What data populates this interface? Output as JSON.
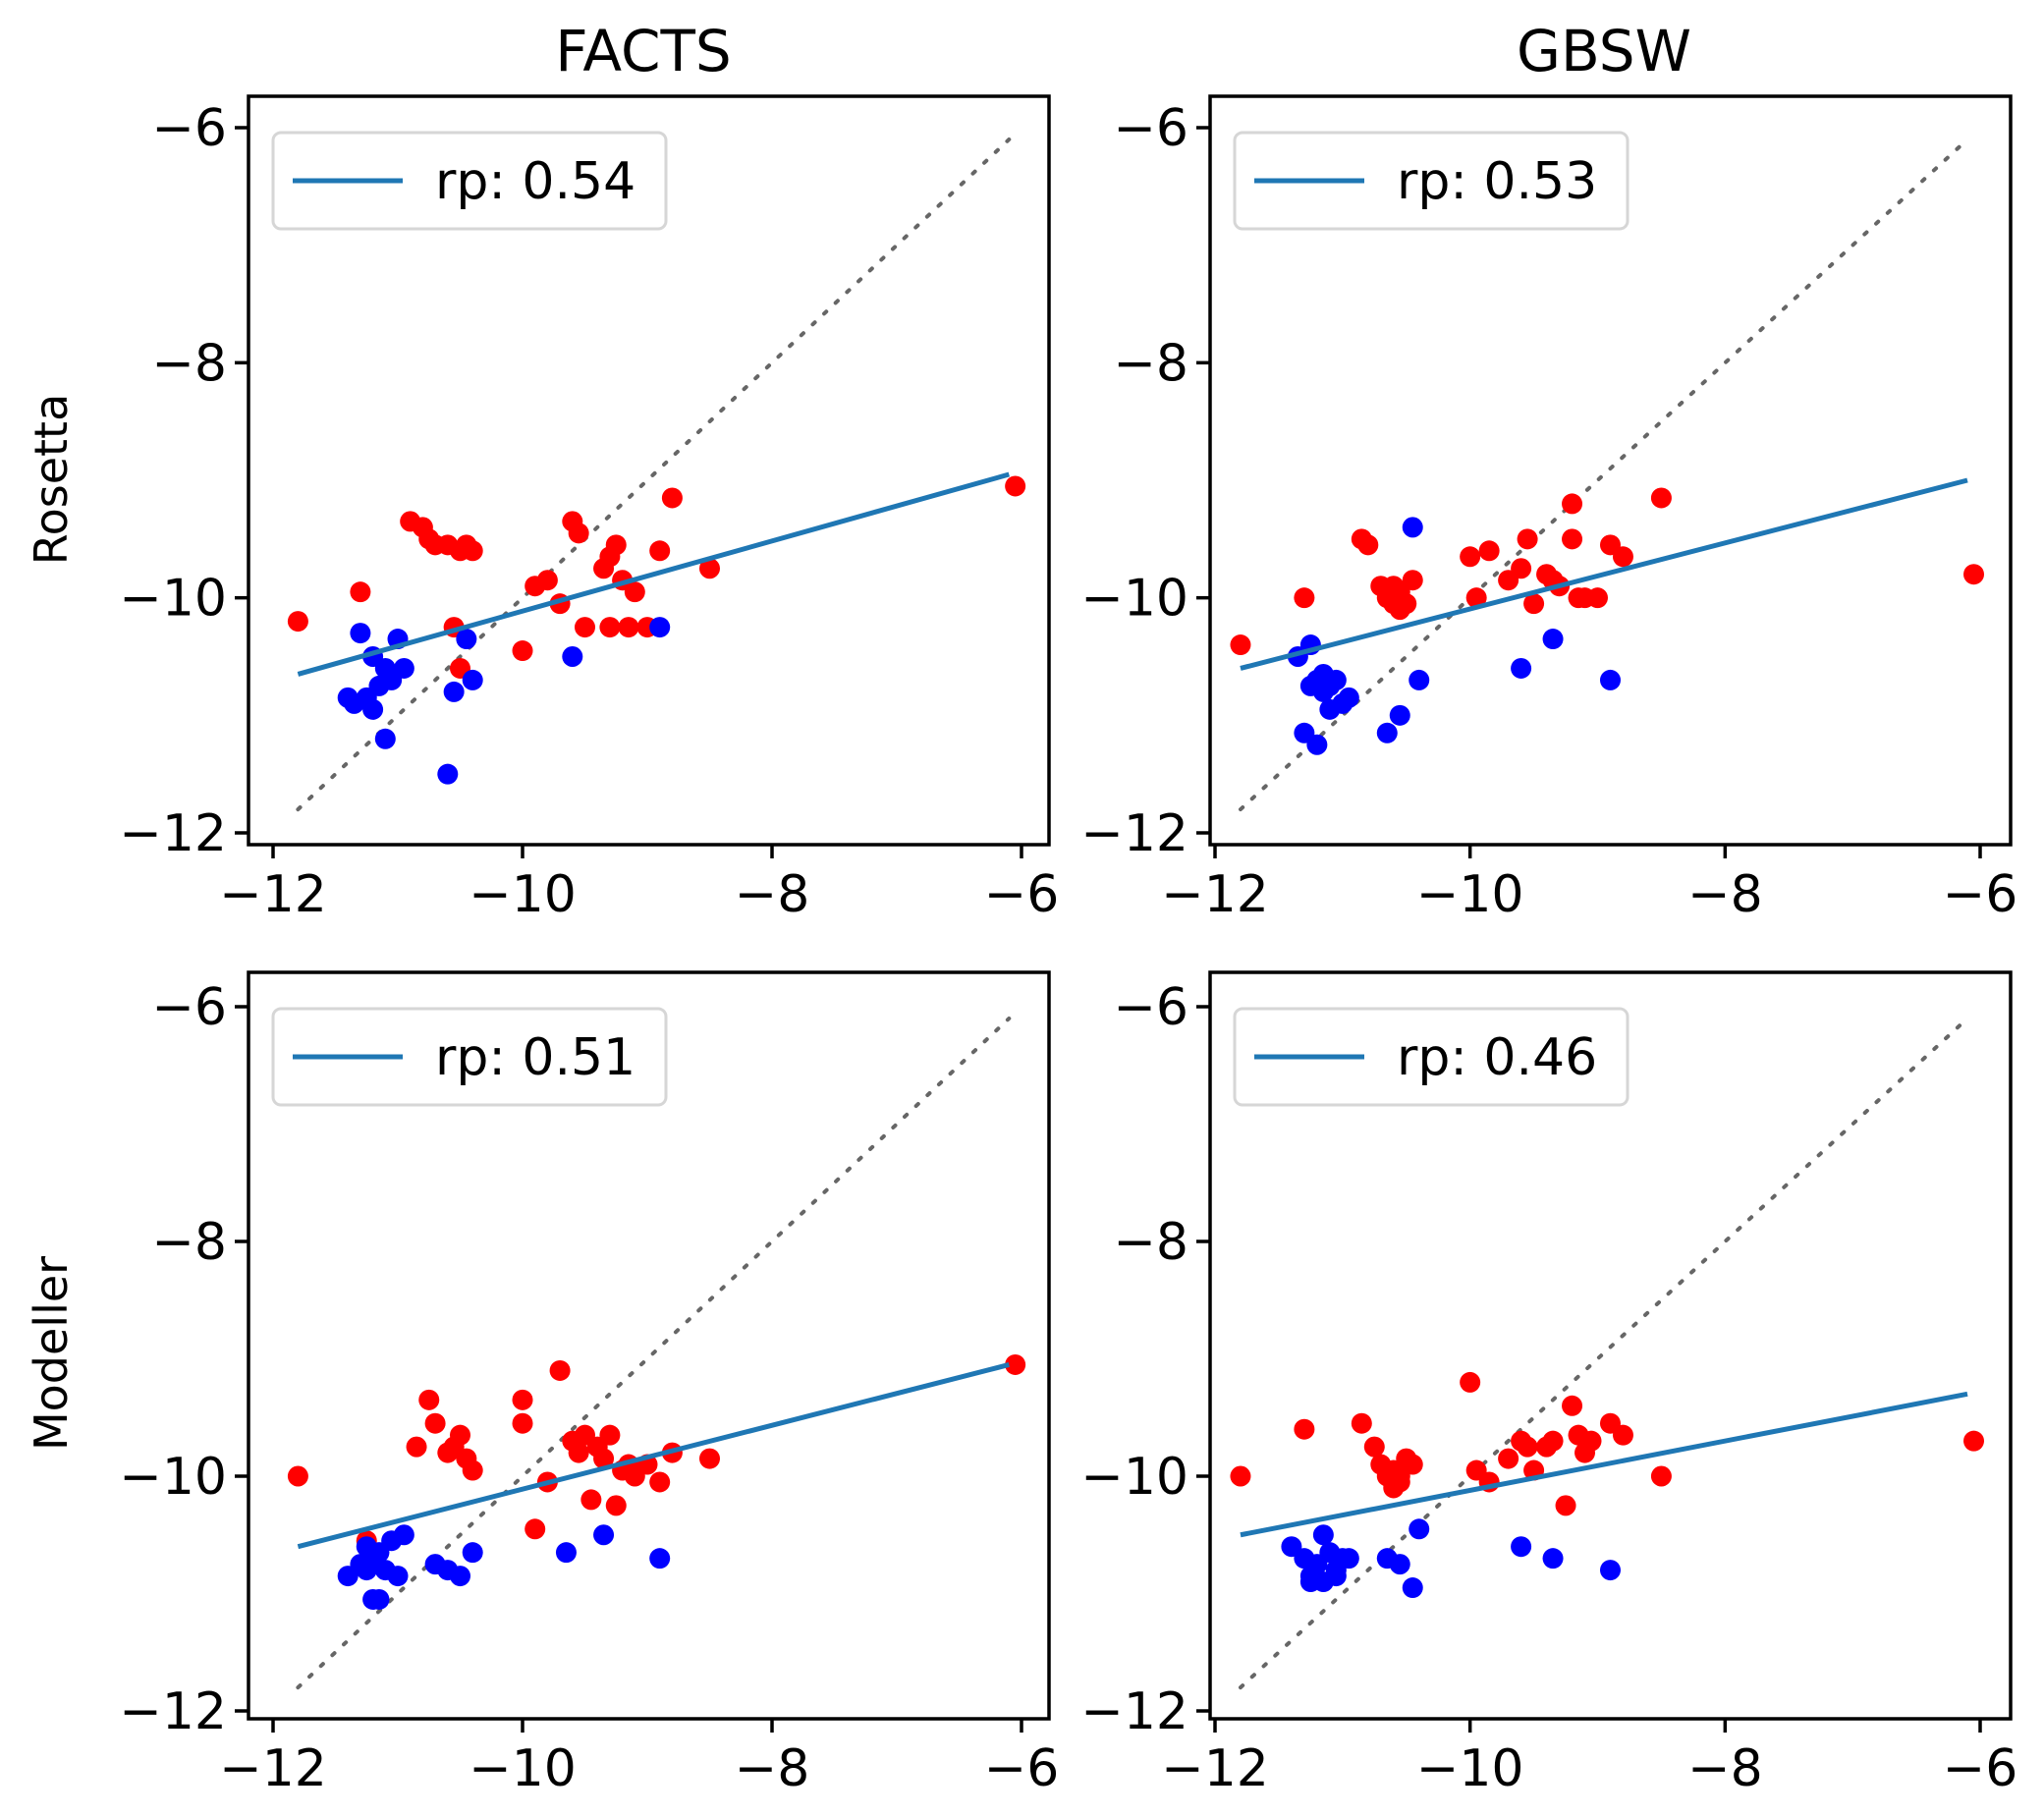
{
  "figure": {
    "column_titles": [
      "FACTS",
      "GBSW"
    ],
    "row_labels": [
      "Rosetta",
      "Modeller"
    ]
  },
  "colors": {
    "fit_line": "#1f77b4",
    "point_red": "#ff0000",
    "point_blue": "#0000ff",
    "identity_line": "#666666"
  },
  "chart_data": [
    {
      "type": "scatter",
      "title": "FACTS",
      "ylabel": "Rosetta",
      "xlim": [
        -12,
        -6
      ],
      "ylim": [
        -12,
        -6
      ],
      "xticks": [
        -12,
        -10,
        -8,
        -6
      ],
      "yticks": [
        -12,
        -10,
        -8,
        -6
      ],
      "legend": "rp: 0.54",
      "legend_position": "top-left",
      "fit": {
        "x": [
          -11.8,
          -6.1
        ],
        "y": [
          -10.65,
          -8.95
        ]
      },
      "identity": {
        "x": [
          -11.8,
          -6.1
        ],
        "y": [
          -11.8,
          -6.1
        ]
      },
      "series": [
        {
          "name": "red",
          "color": "#ff0000",
          "x": [
            -11.8,
            -11.3,
            -10.9,
            -10.8,
            -10.75,
            -10.7,
            -10.6,
            -10.5,
            -10.45,
            -10.4,
            -10.55,
            -10.5,
            -10.0,
            -9.9,
            -9.8,
            -9.7,
            -9.6,
            -9.55,
            -9.5,
            -9.35,
            -9.3,
            -9.25,
            -9.2,
            -9.15,
            -9.1,
            -9.0,
            -8.9,
            -8.8,
            -8.5,
            -6.05,
            -9.3
          ],
          "y": [
            -10.2,
            -9.95,
            -9.35,
            -9.4,
            -9.5,
            -9.55,
            -9.55,
            -9.6,
            -9.55,
            -9.6,
            -10.25,
            -10.6,
            -10.45,
            -9.9,
            -9.85,
            -10.05,
            -9.35,
            -9.45,
            -10.25,
            -9.75,
            -9.65,
            -9.55,
            -9.85,
            -10.25,
            -9.95,
            -10.25,
            -9.6,
            -9.15,
            -9.75,
            -9.05,
            -10.25
          ]
        },
        {
          "name": "blue",
          "color": "#0000ff",
          "x": [
            -11.3,
            -11.2,
            -11.25,
            -11.1,
            -11.15,
            -11.05,
            -11.35,
            -11.0,
            -10.95,
            -11.2,
            -11.1,
            -10.6,
            -10.45,
            -10.4,
            -10.55,
            -9.6,
            -8.9,
            -11.4
          ],
          "y": [
            -10.3,
            -10.5,
            -10.85,
            -10.6,
            -10.75,
            -10.7,
            -10.9,
            -10.35,
            -10.6,
            -10.95,
            -11.2,
            -11.5,
            -10.35,
            -10.7,
            -10.8,
            -10.5,
            -10.25,
            -10.85
          ]
        }
      ]
    },
    {
      "type": "scatter",
      "title": "GBSW",
      "ylabel": "Rosetta",
      "xlim": [
        -12,
        -6
      ],
      "ylim": [
        -12,
        -6
      ],
      "xticks": [
        -12,
        -10,
        -8,
        -6
      ],
      "yticks": [
        -12,
        -10,
        -8,
        -6
      ],
      "legend": "rp: 0.53",
      "legend_position": "top-left",
      "fit": {
        "x": [
          -11.8,
          -6.1
        ],
        "y": [
          -10.6,
          -9.0
        ]
      },
      "identity": {
        "x": [
          -11.8,
          -6.1
        ],
        "y": [
          -11.8,
          -6.1
        ]
      },
      "series": [
        {
          "name": "red",
          "color": "#ff0000",
          "x": [
            -11.8,
            -11.3,
            -10.85,
            -10.8,
            -10.7,
            -10.65,
            -10.6,
            -10.55,
            -10.5,
            -10.45,
            -10.6,
            -10.55,
            -10.0,
            -9.95,
            -9.85,
            -9.7,
            -9.6,
            -9.55,
            -9.5,
            -9.4,
            -9.35,
            -9.3,
            -9.2,
            -9.15,
            -9.1,
            -9.0,
            -8.9,
            -8.8,
            -8.5,
            -6.05,
            -9.2
          ],
          "y": [
            -10.4,
            -10.0,
            -9.5,
            -9.55,
            -9.9,
            -10.0,
            -9.9,
            -9.95,
            -10.05,
            -9.85,
            -10.05,
            -10.1,
            -9.65,
            -10.0,
            -9.6,
            -9.85,
            -9.75,
            -9.5,
            -10.05,
            -9.8,
            -9.85,
            -9.9,
            -9.5,
            -10.0,
            -10.0,
            -10.0,
            -9.55,
            -9.65,
            -9.15,
            -9.8,
            -9.2
          ]
        },
        {
          "name": "blue",
          "color": "#0000ff",
          "x": [
            -11.35,
            -11.25,
            -11.2,
            -11.15,
            -11.1,
            -11.05,
            -11.25,
            -11.15,
            -11.0,
            -11.1,
            -10.95,
            -11.3,
            -11.2,
            -10.65,
            -10.55,
            -10.45,
            -10.4,
            -9.6,
            -9.35,
            -8.9
          ],
          "y": [
            -10.5,
            -10.4,
            -10.7,
            -10.65,
            -10.75,
            -10.7,
            -10.75,
            -10.8,
            -10.9,
            -10.95,
            -10.85,
            -11.15,
            -11.25,
            -11.15,
            -11.0,
            -9.4,
            -10.7,
            -10.6,
            -10.35,
            -10.7
          ]
        }
      ]
    },
    {
      "type": "scatter",
      "title": "FACTS",
      "ylabel": "Modeller",
      "xlim": [
        -12,
        -6
      ],
      "ylim": [
        -12,
        -6
      ],
      "xticks": [
        -12,
        -10,
        -8,
        -6
      ],
      "yticks": [
        -12,
        -10,
        -8,
        -6
      ],
      "legend": "rp: 0.51",
      "legend_position": "top-left",
      "fit": {
        "x": [
          -11.8,
          -6.1
        ],
        "y": [
          -10.6,
          -9.05
        ]
      },
      "identity": {
        "x": [
          -11.8,
          -6.1
        ],
        "y": [
          -11.8,
          -6.1
        ]
      },
      "series": [
        {
          "name": "red",
          "color": "#ff0000",
          "x": [
            -11.8,
            -11.25,
            -10.85,
            -10.75,
            -10.7,
            -10.6,
            -10.55,
            -10.5,
            -10.45,
            -10.4,
            -10.0,
            -10.0,
            -9.9,
            -9.8,
            -9.7,
            -9.6,
            -9.55,
            -9.5,
            -9.45,
            -9.4,
            -9.35,
            -9.3,
            -9.25,
            -9.2,
            -9.15,
            -9.1,
            -9.0,
            -8.9,
            -8.8,
            -8.5,
            -6.05
          ],
          "y": [
            -10.0,
            -10.55,
            -9.75,
            -9.35,
            -9.55,
            -9.8,
            -9.75,
            -9.65,
            -9.85,
            -9.95,
            -9.35,
            -9.55,
            -10.45,
            -10.05,
            -9.1,
            -9.7,
            -9.8,
            -9.65,
            -10.2,
            -9.75,
            -9.85,
            -9.65,
            -10.25,
            -9.95,
            -9.9,
            -10.0,
            -9.9,
            -10.05,
            -9.8,
            -9.85,
            -9.05
          ]
        },
        {
          "name": "blue",
          "color": "#0000ff",
          "x": [
            -11.4,
            -11.3,
            -11.25,
            -11.2,
            -11.15,
            -11.1,
            -11.05,
            -11.0,
            -11.2,
            -11.15,
            -11.25,
            -10.95,
            -10.7,
            -10.6,
            -10.5,
            -10.4,
            -9.65,
            -9.35,
            -8.9
          ],
          "y": [
            -10.85,
            -10.75,
            -10.6,
            -10.7,
            -10.65,
            -10.8,
            -10.55,
            -10.85,
            -11.05,
            -11.05,
            -10.8,
            -10.5,
            -10.75,
            -10.8,
            -10.85,
            -10.65,
            -10.65,
            -10.5,
            -10.7
          ]
        }
      ]
    },
    {
      "type": "scatter",
      "title": "GBSW",
      "ylabel": "Modeller",
      "xlim": [
        -12,
        -6
      ],
      "ylim": [
        -12,
        -6
      ],
      "xticks": [
        -12,
        -10,
        -8,
        -6
      ],
      "yticks": [
        -12,
        -10,
        -8,
        -6
      ],
      "legend": "rp: 0.46",
      "legend_position": "top-left",
      "fit": {
        "x": [
          -11.8,
          -6.1
        ],
        "y": [
          -10.5,
          -9.3
        ]
      },
      "identity": {
        "x": [
          -11.8,
          -6.1
        ],
        "y": [
          -11.8,
          -6.1
        ]
      },
      "series": [
        {
          "name": "red",
          "color": "#ff0000",
          "x": [
            -11.8,
            -11.3,
            -10.85,
            -10.75,
            -10.7,
            -10.65,
            -10.6,
            -10.55,
            -10.5,
            -10.45,
            -10.55,
            -10.6,
            -10.0,
            -9.95,
            -9.85,
            -9.7,
            -9.6,
            -9.55,
            -9.5,
            -9.4,
            -9.35,
            -9.25,
            -9.2,
            -9.15,
            -9.1,
            -9.05,
            -8.9,
            -8.8,
            -8.5,
            -6.05
          ],
          "y": [
            -10.0,
            -9.6,
            -9.55,
            -9.75,
            -9.9,
            -10.0,
            -9.95,
            -10.05,
            -9.85,
            -9.9,
            -10.0,
            -10.1,
            -9.2,
            -9.95,
            -10.05,
            -9.85,
            -9.7,
            -9.75,
            -9.95,
            -9.75,
            -9.7,
            -10.25,
            -9.4,
            -9.65,
            -9.8,
            -9.7,
            -9.55,
            -9.65,
            -10.0,
            -9.7
          ]
        },
        {
          "name": "blue",
          "color": "#0000ff",
          "x": [
            -11.4,
            -11.3,
            -11.25,
            -11.2,
            -11.15,
            -11.1,
            -11.05,
            -11.0,
            -11.25,
            -11.15,
            -11.05,
            -10.95,
            -10.65,
            -10.55,
            -10.45,
            -10.4,
            -9.6,
            -9.35,
            -8.9
          ],
          "y": [
            -10.6,
            -10.7,
            -10.85,
            -10.75,
            -10.5,
            -10.65,
            -10.8,
            -10.7,
            -10.9,
            -10.9,
            -10.85,
            -10.7,
            -10.7,
            -10.75,
            -10.95,
            -10.45,
            -10.6,
            -10.7,
            -10.8
          ]
        }
      ]
    }
  ]
}
